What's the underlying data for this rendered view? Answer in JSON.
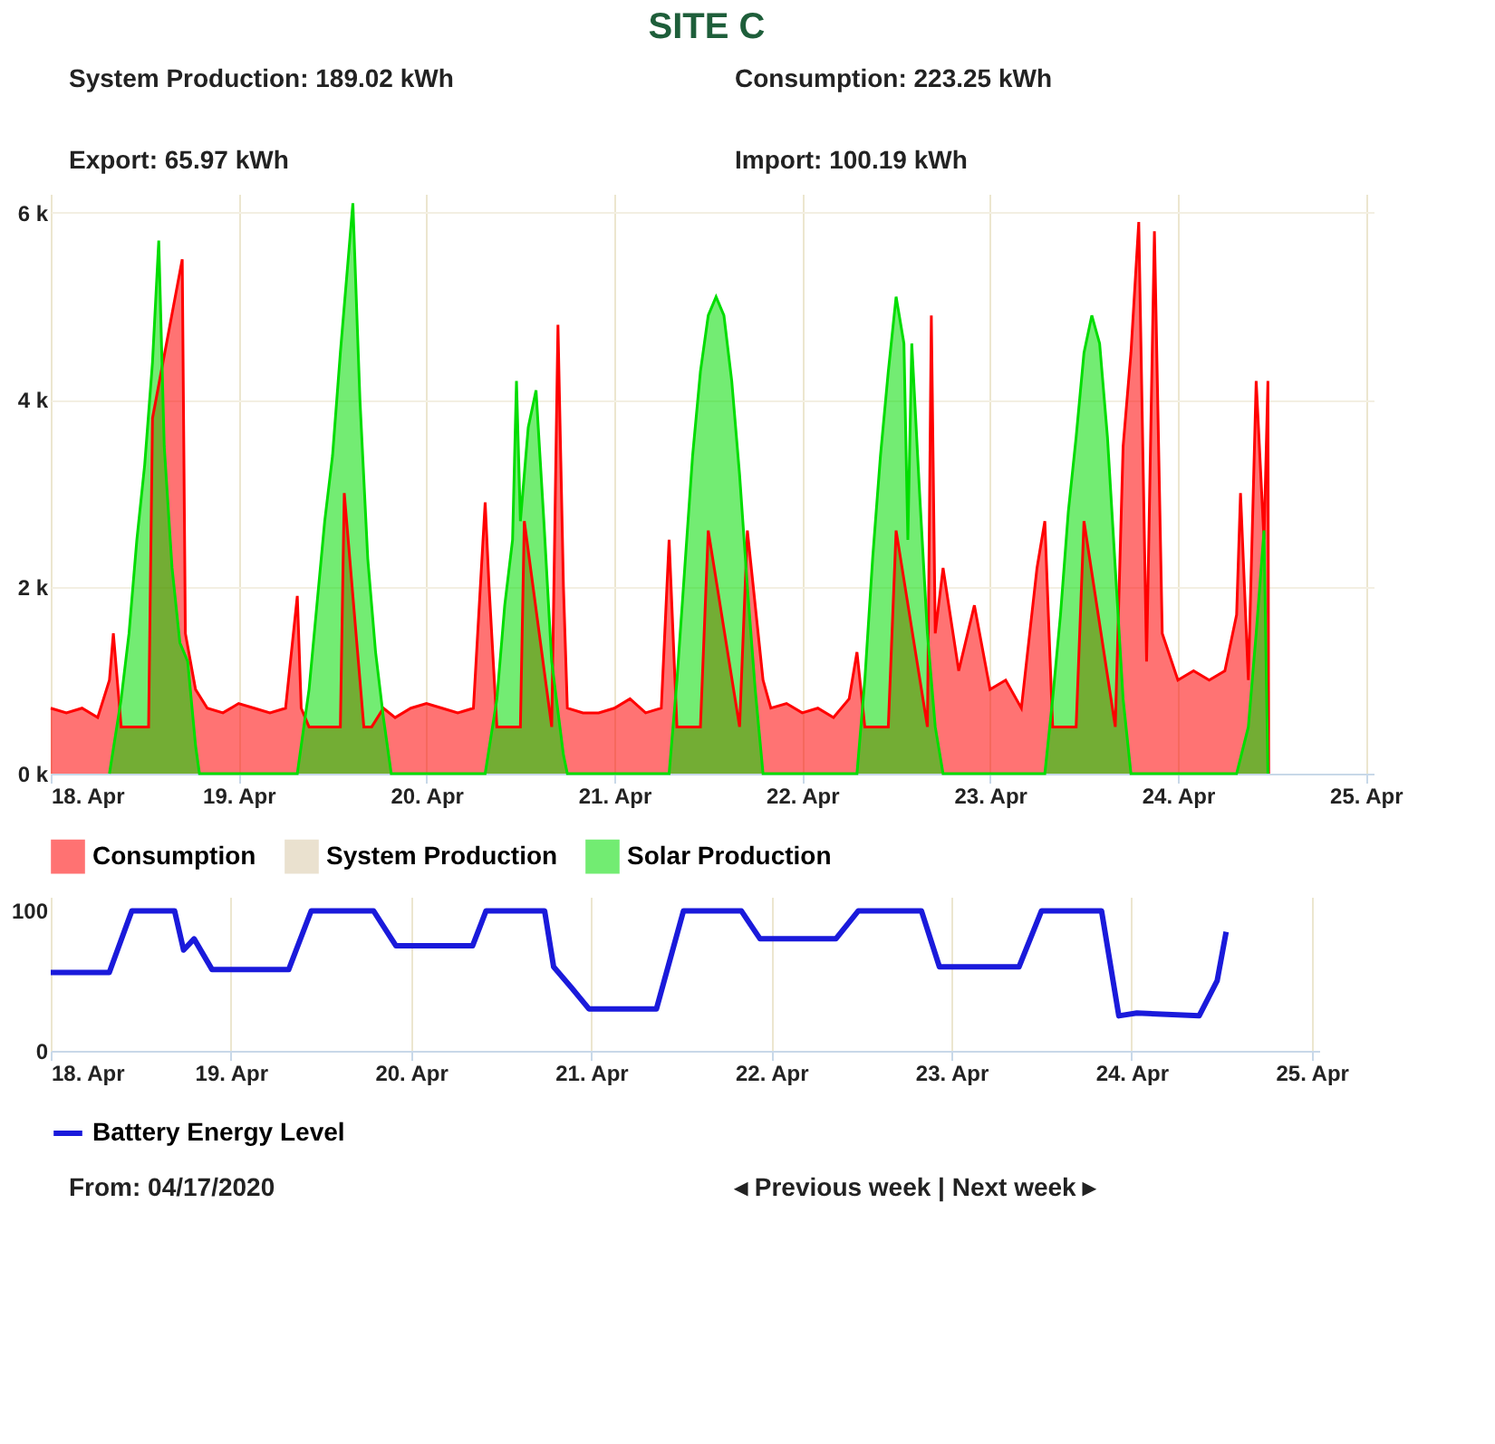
{
  "chart_data": [
    {
      "type": "area",
      "title": "SITE C",
      "annotations": [
        "System Production:  189.02 kWh",
        "Consumption:  223.25 kWh",
        "Export:  65.97 kWh",
        "Import:  100.19 kWh"
      ],
      "xlim": [
        "2020-04-18T00:00",
        "2020-04-25T01:00"
      ],
      "xticks": [
        {
          "value": "2020-04-18",
          "label": "18. Apr"
        },
        {
          "value": "2020-04-19",
          "label": "19. Apr"
        },
        {
          "value": "2020-04-20",
          "label": "20. Apr"
        },
        {
          "value": "2020-04-21",
          "label": "21. Apr"
        },
        {
          "value": "2020-04-22",
          "label": "22. Apr"
        },
        {
          "value": "2020-04-23",
          "label": "23. Apr"
        },
        {
          "value": "2020-04-24",
          "label": "24. Apr"
        },
        {
          "value": "2020-04-25",
          "label": "25. Apr"
        }
      ],
      "ylim": [
        0,
        6200
      ],
      "yticks": [
        {
          "value": 0,
          "label": "0 k"
        },
        {
          "value": 2000,
          "label": "2 k"
        },
        {
          "value": 4000,
          "label": "4 k"
        },
        {
          "value": 6000,
          "label": "6 k"
        }
      ],
      "grid": true,
      "legend": "bottom",
      "marker": "none",
      "line_style": "solid",
      "series": [
        {
          "name": "Consumption",
          "color": "#ff0000",
          "x": [
            "2020-04-18T00:00",
            "2020-04-18T02:00",
            "2020-04-18T04:00",
            "2020-04-18T06:00",
            "2020-04-18T07:30",
            "2020-04-18T08:00",
            "2020-04-18T09:00",
            "2020-04-18T12:30",
            "2020-04-18T13:00",
            "2020-04-18T16:48",
            "2020-04-18T17:12",
            "2020-04-18T18:30",
            "2020-04-18T20:00",
            "2020-04-18T22:00",
            "2020-04-19T00:00",
            "2020-04-19T02:00",
            "2020-04-19T04:00",
            "2020-04-19T06:00",
            "2020-04-19T07:30",
            "2020-04-19T08:00",
            "2020-04-19T09:00",
            "2020-04-19T13:00",
            "2020-04-19T13:30",
            "2020-04-19T16:00",
            "2020-04-19T17:00",
            "2020-04-19T18:30",
            "2020-04-19T20:00",
            "2020-04-19T22:00",
            "2020-04-20T00:00",
            "2020-04-20T02:00",
            "2020-04-20T04:00",
            "2020-04-20T06:00",
            "2020-04-20T07:30",
            "2020-04-20T08:00",
            "2020-04-20T09:00",
            "2020-04-20T12:00",
            "2020-04-20T12:30",
            "2020-04-20T16:00",
            "2020-04-20T16:48",
            "2020-04-20T17:30",
            "2020-04-20T18:00",
            "2020-04-20T20:00",
            "2020-04-20T22:00",
            "2020-04-21T00:00",
            "2020-04-21T02:00",
            "2020-04-21T04:00",
            "2020-04-21T06:00",
            "2020-04-21T07:00",
            "2020-04-21T08:00",
            "2020-04-21T11:00",
            "2020-04-21T12:00",
            "2020-04-21T16:00",
            "2020-04-21T17:00",
            "2020-04-21T19:00",
            "2020-04-21T20:00",
            "2020-04-21T22:00",
            "2020-04-22T00:00",
            "2020-04-22T02:00",
            "2020-04-22T04:00",
            "2020-04-22T06:00",
            "2020-04-22T07:00",
            "2020-04-22T08:00",
            "2020-04-22T11:00",
            "2020-04-22T12:00",
            "2020-04-22T16:00",
            "2020-04-22T16:30",
            "2020-04-22T17:00",
            "2020-04-22T18:00",
            "2020-04-22T20:00",
            "2020-04-22T22:00",
            "2020-04-23T00:00",
            "2020-04-23T02:00",
            "2020-04-23T04:00",
            "2020-04-23T06:00",
            "2020-04-23T07:00",
            "2020-04-23T08:00",
            "2020-04-23T11:00",
            "2020-04-23T12:00",
            "2020-04-23T16:00",
            "2020-04-23T17:00",
            "2020-04-23T18:00",
            "2020-04-23T19:00",
            "2020-04-23T20:00",
            "2020-04-23T21:00",
            "2020-04-23T22:00",
            "2020-04-24T00:00",
            "2020-04-24T02:00",
            "2020-04-24T04:00",
            "2020-04-24T06:00",
            "2020-04-24T07:30",
            "2020-04-24T08:00",
            "2020-04-24T09:00",
            "2020-04-24T10:00",
            "2020-04-24T11:00",
            "2020-04-24T11:30",
            "2020-04-24T11:36"
          ],
          "values": [
            700,
            650,
            700,
            600,
            1000,
            1500,
            500,
            500,
            3800,
            5500,
            1500,
            900,
            700,
            650,
            750,
            700,
            650,
            700,
            1900,
            700,
            500,
            500,
            3000,
            500,
            500,
            700,
            600,
            700,
            750,
            700,
            650,
            700,
            2900,
            2000,
            500,
            500,
            2700,
            500,
            4800,
            2000,
            700,
            650,
            650,
            700,
            800,
            650,
            700,
            2500,
            500,
            500,
            2600,
            500,
            2600,
            1000,
            700,
            750,
            650,
            700,
            600,
            800,
            1300,
            500,
            500,
            2600,
            500,
            4900,
            1500,
            2200,
            1100,
            1800,
            900,
            1000,
            700,
            2200,
            2700,
            500,
            500,
            2700,
            500,
            3500,
            4500,
            5900,
            1200,
            5800,
            1500,
            1000,
            1100,
            1000,
            1100,
            1700,
            3000,
            1000,
            4200,
            2500,
            4200,
            0
          ]
        },
        {
          "name": "System Production",
          "color": "#d9c9a9"
        },
        {
          "name": "Solar Production",
          "color": "#00dd00",
          "x": [
            "2020-04-18T07:30",
            "2020-04-18T09:00",
            "2020-04-18T10:00",
            "2020-04-18T11:00",
            "2020-04-18T12:00",
            "2020-04-18T13:00",
            "2020-04-18T13:48",
            "2020-04-18T14:30",
            "2020-04-18T15:30",
            "2020-04-18T16:30",
            "2020-04-18T17:30",
            "2020-04-18T18:30",
            "2020-04-18T19:00",
            "2020-04-19T07:30",
            "2020-04-19T09:00",
            "2020-04-19T10:00",
            "2020-04-19T11:00",
            "2020-04-19T12:00",
            "2020-04-19T13:00",
            "2020-04-19T14:36",
            "2020-04-19T15:30",
            "2020-04-19T16:30",
            "2020-04-19T17:30",
            "2020-04-19T18:30",
            "2020-04-19T19:30",
            "2020-04-20T07:30",
            "2020-04-20T09:00",
            "2020-04-20T10:00",
            "2020-04-20T11:00",
            "2020-04-20T11:30",
            "2020-04-20T12:00",
            "2020-04-20T13:00",
            "2020-04-20T14:00",
            "2020-04-20T15:00",
            "2020-04-20T16:00",
            "2020-04-20T17:30",
            "2020-04-20T18:00",
            "2020-04-21T07:00",
            "2020-04-21T08:00",
            "2020-04-21T09:00",
            "2020-04-21T10:00",
            "2020-04-21T11:00",
            "2020-04-21T12:00",
            "2020-04-21T13:00",
            "2020-04-21T14:00",
            "2020-04-21T15:00",
            "2020-04-21T16:00",
            "2020-04-21T17:00",
            "2020-04-21T18:00",
            "2020-04-21T19:00",
            "2020-04-22T07:00",
            "2020-04-22T08:00",
            "2020-04-22T09:00",
            "2020-04-22T10:00",
            "2020-04-22T11:00",
            "2020-04-22T12:00",
            "2020-04-22T13:00",
            "2020-04-22T13:30",
            "2020-04-22T14:00",
            "2020-04-22T15:00",
            "2020-04-22T16:00",
            "2020-04-22T17:00",
            "2020-04-22T18:00",
            "2020-04-23T07:00",
            "2020-04-23T08:00",
            "2020-04-23T09:00",
            "2020-04-23T10:00",
            "2020-04-23T11:00",
            "2020-04-23T12:00",
            "2020-04-23T13:00",
            "2020-04-23T14:00",
            "2020-04-23T15:00",
            "2020-04-23T16:00",
            "2020-04-23T17:00",
            "2020-04-23T18:00",
            "2020-04-24T07:30",
            "2020-04-24T09:00",
            "2020-04-24T10:00",
            "2020-04-24T11:00",
            "2020-04-24T11:30"
          ],
          "values": [
            0,
            800,
            1500,
            2500,
            3300,
            4400,
            5700,
            3500,
            2200,
            1400,
            1200,
            300,
            0,
            0,
            900,
            1800,
            2700,
            3400,
            4500,
            6100,
            4000,
            2300,
            1300,
            600,
            0,
            0,
            800,
            1800,
            2500,
            4200,
            2700,
            3700,
            4100,
            2700,
            1200,
            200,
            0,
            0,
            1000,
            2200,
            3400,
            4300,
            4900,
            5100,
            4900,
            4200,
            3200,
            2000,
            900,
            0,
            0,
            1000,
            2300,
            3400,
            4300,
            5100,
            4600,
            2500,
            4600,
            3000,
            1500,
            500,
            0,
            0,
            800,
            1700,
            2800,
            3600,
            4500,
            4900,
            4600,
            3600,
            2200,
            800,
            0,
            0,
            500,
            1500,
            2600,
            0
          ]
        }
      ]
    },
    {
      "type": "line",
      "annotations": [
        "From:  04/17/2020",
        "◂ Previous week  |  Next week ▸"
      ],
      "xlim": [
        "2020-04-18T00:00",
        "2020-04-25T01:00"
      ],
      "xticks": [
        {
          "value": "2020-04-18",
          "label": "18. Apr"
        },
        {
          "value": "2020-04-19",
          "label": "19. Apr"
        },
        {
          "value": "2020-04-20",
          "label": "20. Apr"
        },
        {
          "value": "2020-04-21",
          "label": "21. Apr"
        },
        {
          "value": "2020-04-22",
          "label": "22. Apr"
        },
        {
          "value": "2020-04-23",
          "label": "23. Apr"
        },
        {
          "value": "2020-04-24",
          "label": "24. Apr"
        },
        {
          "value": "2020-04-25",
          "label": "25. Apr"
        }
      ],
      "ylim": [
        0,
        110
      ],
      "yticks": [
        0,
        100
      ],
      "grid": "x",
      "legend": "bottom",
      "marker": "none",
      "line_style": "solid",
      "series": [
        {
          "name": "Battery Energy Level",
          "color": "#1a1adb",
          "x": [
            "2020-04-18T00:00",
            "2020-04-18T07:48",
            "2020-04-18T10:48",
            "2020-04-18T16:30",
            "2020-04-18T17:42",
            "2020-04-18T19:06",
            "2020-04-18T21:30",
            "2020-04-19T07:42",
            "2020-04-19T10:42",
            "2020-04-19T19:00",
            "2020-04-19T22:00",
            "2020-04-20T08:12",
            "2020-04-20T10:00",
            "2020-04-20T17:48",
            "2020-04-20T19:00",
            "2020-04-20T21:24",
            "2020-04-20T23:42",
            "2020-04-21T08:42",
            "2020-04-21T12:18",
            "2020-04-21T20:00",
            "2020-04-21T22:30",
            "2020-04-22T08:36",
            "2020-04-22T11:36",
            "2020-04-22T20:00",
            "2020-04-22T22:24",
            "2020-04-23T09:00",
            "2020-04-23T12:00",
            "2020-04-23T20:00",
            "2020-04-23T22:18",
            "2020-04-24T00:42",
            "2020-04-24T09:00",
            "2020-04-24T11:24",
            "2020-04-24T12:36"
          ],
          "values": [
            56,
            56,
            100,
            100,
            72,
            80,
            58,
            58,
            100,
            100,
            75,
            75,
            100,
            100,
            60,
            45,
            30,
            30,
            100,
            100,
            80,
            80,
            100,
            100,
            60,
            60,
            100,
            100,
            25,
            27,
            25,
            50,
            85
          ]
        }
      ]
    }
  ]
}
